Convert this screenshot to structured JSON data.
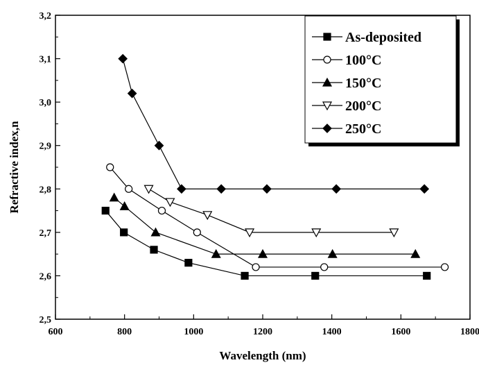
{
  "chart_data": {
    "type": "line",
    "xlabel": "Wavelength (nm)",
    "ylabel": "Refractive index,n",
    "xlim": [
      600,
      1800
    ],
    "ylim": [
      2.5,
      3.2
    ],
    "x_ticks": [
      "600",
      "800",
      "1000",
      "1200",
      "1400",
      "1600",
      "1800"
    ],
    "y_ticks": [
      "2,5",
      "2,6",
      "2,7",
      "2,8",
      "2,9",
      "3,0",
      "3,1",
      "3,2"
    ],
    "grid": false,
    "legend_position": "top-right",
    "series": [
      {
        "name": "As-deposited",
        "marker": "filled-square",
        "x": [
          745,
          798,
          885,
          985,
          1148,
          1352,
          1675
        ],
        "y": [
          2.75,
          2.7,
          2.66,
          2.63,
          2.6,
          2.6,
          2.6
        ]
      },
      {
        "name": "100°C",
        "marker": "open-circle",
        "x": [
          758,
          812,
          908,
          1010,
          1180,
          1378,
          1727
        ],
        "y": [
          2.85,
          2.8,
          2.75,
          2.7,
          2.62,
          2.62,
          2.62
        ]
      },
      {
        "name": "150°C",
        "marker": "filled-triangle-up",
        "x": [
          770,
          800,
          890,
          1065,
          1200,
          1402,
          1642
        ],
        "y": [
          2.78,
          2.76,
          2.7,
          2.65,
          2.65,
          2.65,
          2.65
        ]
      },
      {
        "name": "200°C",
        "marker": "open-triangle-down",
        "x": [
          870,
          932,
          1040,
          1162,
          1355,
          1580
        ],
        "y": [
          2.8,
          2.77,
          2.74,
          2.7,
          2.7,
          2.7
        ]
      },
      {
        "name": "250°C",
        "marker": "filled-diamond",
        "x": [
          795,
          822,
          900,
          965,
          1080,
          1212,
          1413,
          1668
        ],
        "y": [
          3.1,
          3.02,
          2.9,
          2.8,
          2.8,
          2.8,
          2.8,
          2.8
        ]
      }
    ]
  }
}
